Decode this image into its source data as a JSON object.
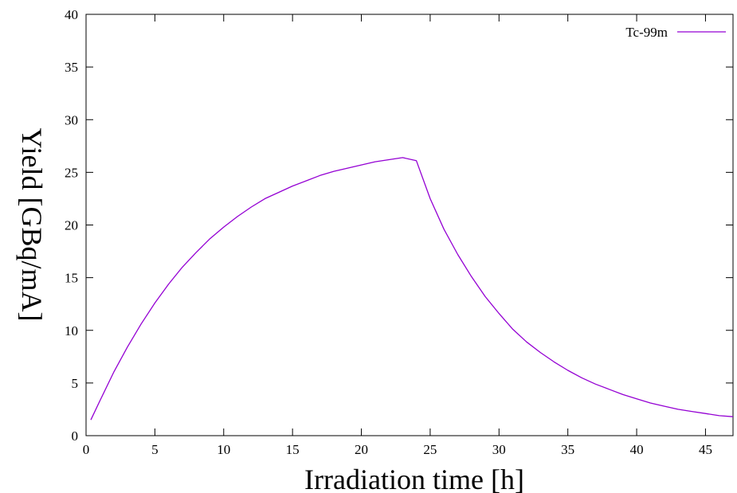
{
  "chart_data": {
    "type": "line",
    "title": "",
    "xlabel": "Irradiation time [h]",
    "ylabel": "Yield [GBq/mA]",
    "xlim": [
      0,
      47
    ],
    "ylim": [
      0,
      40
    ],
    "xticks": [
      0,
      5,
      10,
      15,
      20,
      25,
      30,
      35,
      40,
      45
    ],
    "yticks": [
      0,
      5,
      10,
      15,
      20,
      25,
      30,
      35,
      40
    ],
    "grid": false,
    "legend": "top-right",
    "series": [
      {
        "name": "Tc-99m",
        "color": "#9400d3",
        "x": [
          0.35,
          1,
          2,
          3,
          4,
          5,
          6,
          7,
          8,
          9,
          10,
          11,
          12,
          13,
          14,
          15,
          16,
          17,
          18,
          19,
          20,
          21,
          22,
          23,
          24,
          25,
          26,
          27,
          28,
          29,
          30,
          31,
          32,
          33,
          34,
          35,
          36,
          37,
          38,
          39,
          40,
          41,
          42,
          43,
          44,
          45,
          46,
          47
        ],
        "y": [
          1.5,
          3.3,
          6.0,
          8.4,
          10.6,
          12.6,
          14.4,
          16.0,
          17.4,
          18.7,
          19.8,
          20.8,
          21.7,
          22.5,
          23.1,
          23.7,
          24.2,
          24.7,
          25.1,
          25.4,
          25.7,
          26.0,
          26.2,
          26.4,
          26.1,
          22.5,
          19.6,
          17.2,
          15.1,
          13.2,
          11.6,
          10.1,
          8.9,
          7.9,
          7.0,
          6.2,
          5.5,
          4.9,
          4.4,
          3.9,
          3.5,
          3.1,
          2.8,
          2.5,
          2.3,
          2.1,
          1.9,
          1.8
        ]
      }
    ]
  }
}
